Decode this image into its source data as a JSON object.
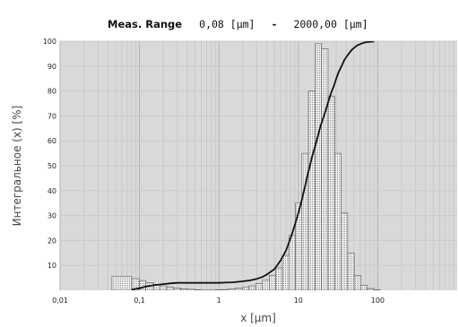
{
  "chart_data": {
    "type": "bar",
    "title_label": "Meas. Range",
    "title_from": "0,08 [µm]",
    "title_sep": "-",
    "title_to": "2000,00 [µm]",
    "xlabel": "x [µm]",
    "ylabel": "Интегральное (x) [%]",
    "x_scale": "log",
    "xlim": [
      0.01,
      1000
    ],
    "ylim": [
      0,
      100
    ],
    "x_ticks": [
      {
        "value": 0.01,
        "label": "0,01"
      },
      {
        "value": 0.1,
        "label": "0,1"
      },
      {
        "value": 1,
        "label": "1"
      },
      {
        "value": 10,
        "label": "10"
      },
      {
        "value": 100,
        "label": "100"
      }
    ],
    "y_ticks": [
      10,
      20,
      30,
      40,
      50,
      60,
      70,
      80,
      90,
      100
    ],
    "grid": true,
    "colors": {
      "plot_background": "#d9d9d9",
      "grid_minor": "#c9c9c9",
      "grid_major": "#b3b3b3",
      "bar_fill": "#f4f4f4",
      "bar_edge": "#555555",
      "cumulative_line": "#111111"
    },
    "series": [
      {
        "type": "histogram",
        "bins": [
          {
            "x0": 0.045,
            "x1": 0.08,
            "y": 5.5
          },
          {
            "x0": 0.08,
            "x1": 0.1,
            "y": 4.7
          },
          {
            "x0": 0.1,
            "x1": 0.12,
            "y": 3.9
          },
          {
            "x0": 0.12,
            "x1": 0.15,
            "y": 3.1
          },
          {
            "x0": 0.15,
            "x1": 0.18,
            "y": 2.4
          },
          {
            "x0": 0.18,
            "x1": 0.22,
            "y": 1.8
          },
          {
            "x0": 0.22,
            "x1": 0.27,
            "y": 1.3
          },
          {
            "x0": 0.27,
            "x1": 0.33,
            "y": 0.9
          },
          {
            "x0": 0.33,
            "x1": 0.4,
            "y": 0.6
          },
          {
            "x0": 0.4,
            "x1": 0.5,
            "y": 0.4
          },
          {
            "x0": 0.5,
            "x1": 0.6,
            "y": 0.2
          },
          {
            "x0": 0.6,
            "x1": 0.75,
            "y": 0.1
          },
          {
            "x0": 0.75,
            "x1": 0.9,
            "y": 0.1
          },
          {
            "x0": 0.9,
            "x1": 1.1,
            "y": 0.2
          },
          {
            "x0": 1.1,
            "x1": 1.3,
            "y": 0.3
          },
          {
            "x0": 1.3,
            "x1": 1.6,
            "y": 0.5
          },
          {
            "x0": 1.6,
            "x1": 2.0,
            "y": 0.8
          },
          {
            "x0": 2.0,
            "x1": 2.4,
            "y": 1.2
          },
          {
            "x0": 2.4,
            "x1": 2.9,
            "y": 1.8
          },
          {
            "x0": 2.9,
            "x1": 3.5,
            "y": 2.7
          },
          {
            "x0": 3.5,
            "x1": 4.3,
            "y": 4.0
          },
          {
            "x0": 4.3,
            "x1": 5.2,
            "y": 6.0
          },
          {
            "x0": 5.2,
            "x1": 6.3,
            "y": 9.0
          },
          {
            "x0": 6.3,
            "x1": 7.6,
            "y": 14.0
          },
          {
            "x0": 7.6,
            "x1": 9.2,
            "y": 22.0
          },
          {
            "x0": 9.2,
            "x1": 11.1,
            "y": 35.0
          },
          {
            "x0": 11.1,
            "x1": 13.4,
            "y": 55.0
          },
          {
            "x0": 13.4,
            "x1": 16.2,
            "y": 80.0
          },
          {
            "x0": 16.2,
            "x1": 19.6,
            "y": 99.0
          },
          {
            "x0": 19.6,
            "x1": 23.7,
            "y": 97.0
          },
          {
            "x0": 23.7,
            "x1": 28.6,
            "y": 78.0
          },
          {
            "x0": 28.6,
            "x1": 34.6,
            "y": 55.0
          },
          {
            "x0": 34.6,
            "x1": 41.8,
            "y": 31.0
          },
          {
            "x0": 41.8,
            "x1": 50.5,
            "y": 15.0
          },
          {
            "x0": 50.5,
            "x1": 61.0,
            "y": 6.0
          },
          {
            "x0": 61.0,
            "x1": 73.8,
            "y": 2.0
          },
          {
            "x0": 73.8,
            "x1": 89.2,
            "y": 0.7
          },
          {
            "x0": 89.2,
            "x1": 107.8,
            "y": 0.2
          }
        ]
      },
      {
        "type": "line",
        "points": [
          [
            0.08,
            0.3
          ],
          [
            0.1,
            0.8
          ],
          [
            0.12,
            1.5
          ],
          [
            0.15,
            2.0
          ],
          [
            0.2,
            2.5
          ],
          [
            0.25,
            2.8
          ],
          [
            0.3,
            3.0
          ],
          [
            0.5,
            3.0
          ],
          [
            1.0,
            3.0
          ],
          [
            1.5,
            3.2
          ],
          [
            2.0,
            3.6
          ],
          [
            2.5,
            4.0
          ],
          [
            3.0,
            4.6
          ],
          [
            3.5,
            5.3
          ],
          [
            4.0,
            6.3
          ],
          [
            5.0,
            8.5
          ],
          [
            6.0,
            12.0
          ],
          [
            7.0,
            16.0
          ],
          [
            8.0,
            21.0
          ],
          [
            9.0,
            26.0
          ],
          [
            10.0,
            31.0
          ],
          [
            11.0,
            36.0
          ],
          [
            12.0,
            41.0
          ],
          [
            13.0,
            46.0
          ],
          [
            14.0,
            50.0
          ],
          [
            15.0,
            54.0
          ],
          [
            16.0,
            57.0
          ],
          [
            17.0,
            60.0
          ],
          [
            18.0,
            63.0
          ],
          [
            19.0,
            66.0
          ],
          [
            20.0,
            68.0
          ],
          [
            22.0,
            72.0
          ],
          [
            24.0,
            76.0
          ],
          [
            26.0,
            79.5
          ],
          [
            28.0,
            82.0
          ],
          [
            30.0,
            85.0
          ],
          [
            32.0,
            87.5
          ],
          [
            35.0,
            90.0
          ],
          [
            38.0,
            92.5
          ],
          [
            42.0,
            94.5
          ],
          [
            47.0,
            96.5
          ],
          [
            55.0,
            98.3
          ],
          [
            65.0,
            99.3
          ],
          [
            75.0,
            99.7
          ],
          [
            90.0,
            99.9
          ]
        ]
      }
    ]
  }
}
